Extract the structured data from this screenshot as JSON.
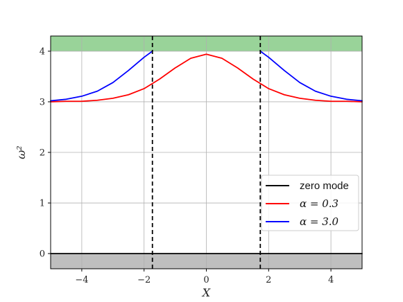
{
  "chart_data": {
    "type": "line",
    "title": "",
    "xlabel": "X",
    "ylabel": "ω²",
    "xlim": [
      -5,
      5
    ],
    "ylim": [
      -0.3,
      4.3
    ],
    "grid": true,
    "x_ticks": [
      -4,
      -2,
      0,
      2,
      4
    ],
    "x_tick_labels": [
      "−4",
      "−2",
      "0",
      "2",
      "4"
    ],
    "y_ticks": [
      0,
      1,
      2,
      3,
      4
    ],
    "y_tick_labels": [
      "0",
      "1",
      "2",
      "3",
      "4"
    ],
    "bands": [
      {
        "y0": 4,
        "y1": 4.3,
        "color": "#99d399"
      },
      {
        "y0": -0.3,
        "y1": 0,
        "color": "#bfbfbf"
      }
    ],
    "vlines": [
      {
        "x": -1.732,
        "style": "dashed",
        "color": "#000000"
      },
      {
        "x": 1.732,
        "style": "dashed",
        "color": "#000000"
      }
    ],
    "series": [
      {
        "name": "zero mode",
        "color": "#000000",
        "x": [
          -5,
          5
        ],
        "y": [
          0,
          0
        ]
      },
      {
        "name": "α = 0.3",
        "color": "#ff0000",
        "x": [
          -5.0,
          -4.5,
          -4.0,
          -3.5,
          -3.0,
          -2.5,
          -2.0,
          -1.5,
          -1.0,
          -0.5,
          0.0,
          0.5,
          1.0,
          1.5,
          2.0,
          2.5,
          3.0,
          3.5,
          4.0,
          4.5,
          5.0
        ],
        "y": [
          3.0,
          3.01,
          3.01,
          3.03,
          3.07,
          3.14,
          3.26,
          3.45,
          3.67,
          3.86,
          3.94,
          3.86,
          3.67,
          3.45,
          3.26,
          3.14,
          3.07,
          3.03,
          3.01,
          3.01,
          3.0
        ]
      },
      {
        "name": "α = 3.0",
        "color": "#0000ff",
        "segments": [
          {
            "x": [
              -5.0,
              -4.5,
              -4.0,
              -3.5,
              -3.0,
              -2.5,
              -2.0,
              -1.732
            ],
            "y": [
              3.02,
              3.05,
              3.11,
              3.21,
              3.38,
              3.62,
              3.88,
              4.0
            ]
          },
          {
            "x": [
              1.732,
              2.0,
              2.5,
              3.0,
              3.5,
              4.0,
              4.5,
              5.0
            ],
            "y": [
              4.0,
              3.88,
              3.62,
              3.38,
              3.21,
              3.11,
              3.05,
              3.02
            ]
          }
        ]
      }
    ],
    "legend": {
      "placement": "lower-right",
      "entries": [
        {
          "label": "zero mode",
          "color": "#000000",
          "font": "sans"
        },
        {
          "label": "α = 0.3",
          "color": "#ff0000",
          "font": "serif"
        },
        {
          "label": "α = 3.0",
          "color": "#0000ff",
          "font": "serif"
        }
      ]
    }
  }
}
